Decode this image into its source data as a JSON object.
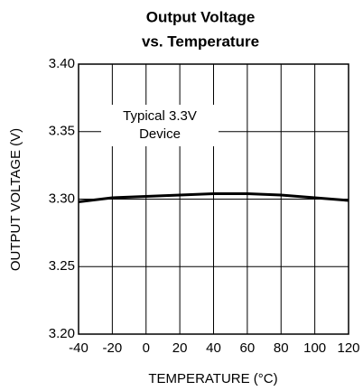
{
  "chart_data": {
    "type": "line",
    "title": [
      "Output Voltage",
      "vs. Temperature"
    ],
    "xlabel": "TEMPERATURE (°C)",
    "ylabel": "OUTPUT VOLTAGE (V)",
    "annotation": [
      "Typical 3.3V",
      "Device"
    ],
    "x": [
      -40,
      -20,
      0,
      20,
      40,
      60,
      80,
      100,
      120
    ],
    "series": [
      {
        "color": "#000000",
        "values": [
          3.298,
          3.301,
          3.302,
          3.303,
          3.304,
          3.304,
          3.303,
          3.301,
          3.299
        ]
      }
    ],
    "xlim": [
      -40,
      120
    ],
    "xticks": [
      -40,
      -20,
      0,
      20,
      40,
      60,
      80,
      100,
      120
    ],
    "ylim": [
      3.2,
      3.4
    ],
    "yticks": [
      {
        "value": 3.2,
        "label": "3.20"
      },
      3.25,
      {
        "value": 3.3,
        "label": "3.30"
      },
      3.35,
      {
        "value": 3.4,
        "label": "3.40"
      }
    ],
    "grid": true
  }
}
